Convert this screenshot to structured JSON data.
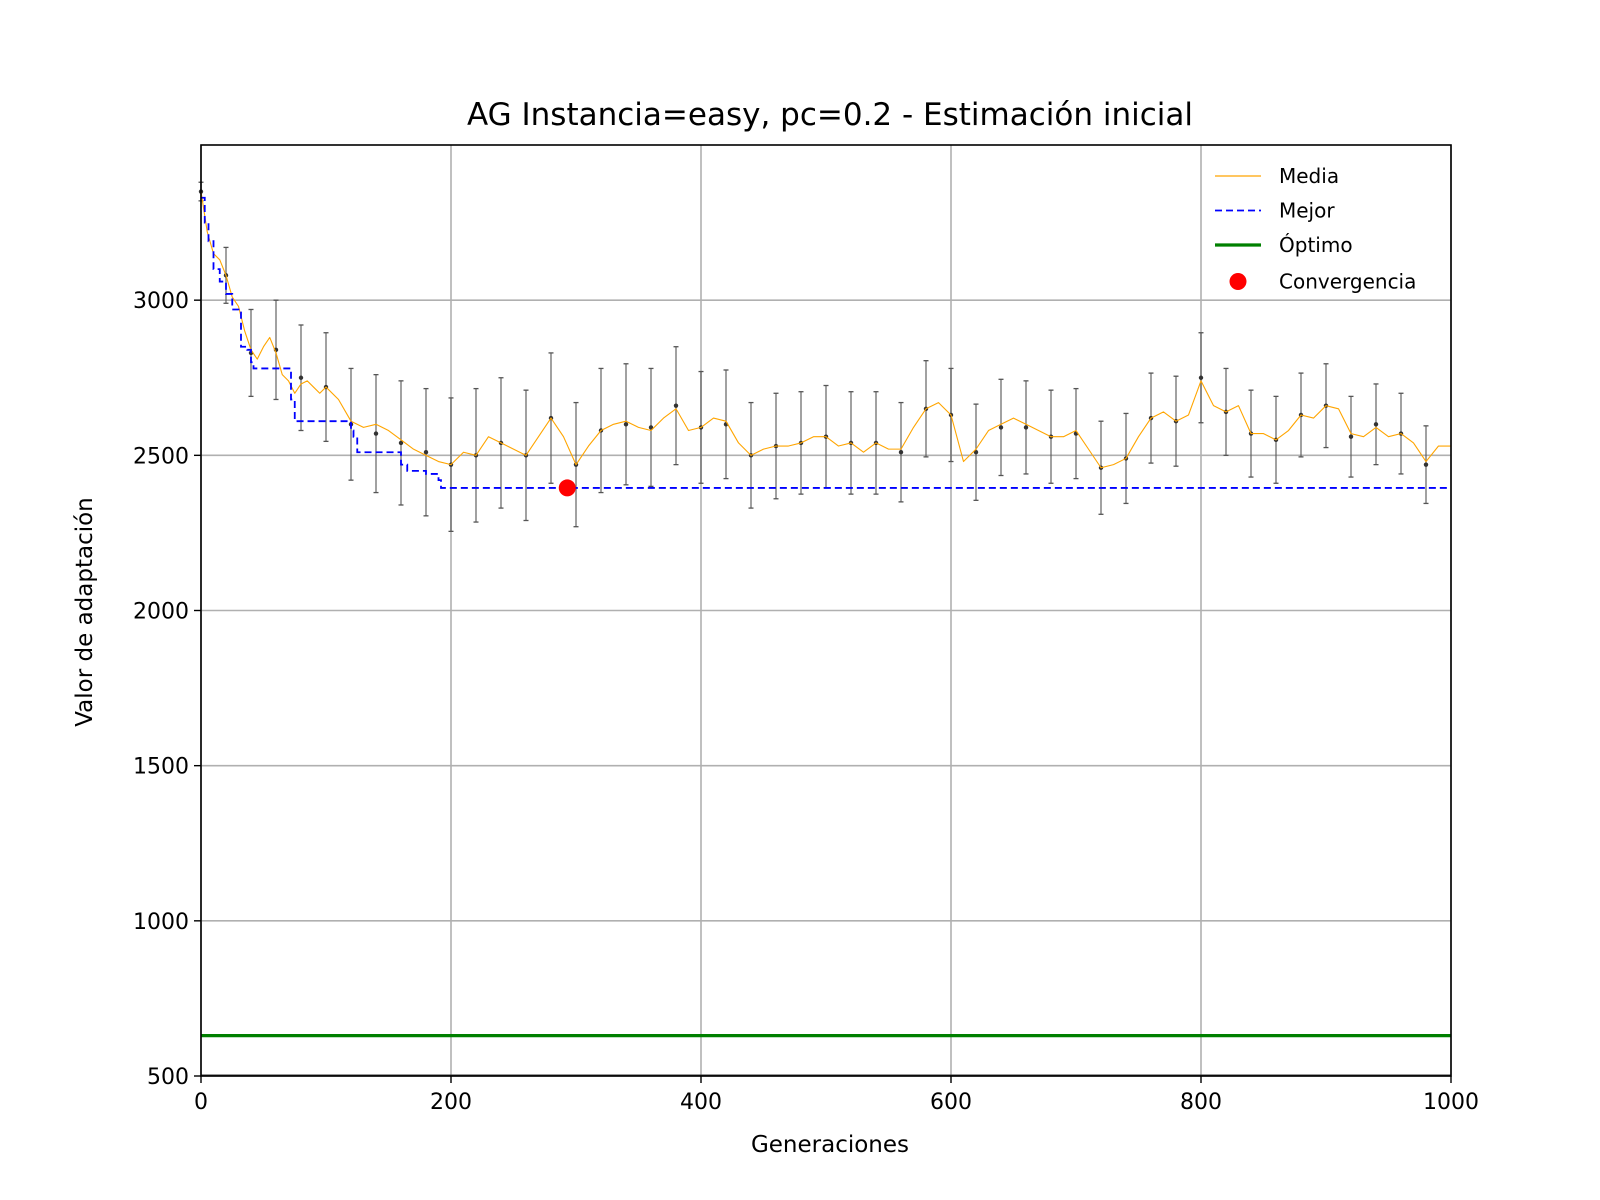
{
  "chart_data": {
    "type": "line",
    "title": "AG Instancia=easy, pc=0.2 - Estimación inicial",
    "xlabel": "Generaciones",
    "ylabel": "Valor de adaptación",
    "xlim": [
      0,
      1000
    ],
    "ylim": [
      500,
      3500
    ],
    "xticks": [
      0,
      200,
      400,
      600,
      800,
      1000
    ],
    "yticks": [
      500,
      1000,
      1500,
      2000,
      2500,
      3000
    ],
    "grid": true,
    "legend_position": "top-right",
    "series": [
      {
        "name": "Media",
        "color": "#ffa500",
        "style": "thin-solid",
        "x": [
          0,
          5,
          10,
          15,
          20,
          25,
          30,
          35,
          40,
          45,
          50,
          55,
          60,
          65,
          70,
          75,
          80,
          85,
          90,
          95,
          100,
          110,
          120,
          130,
          140,
          150,
          160,
          170,
          180,
          190,
          200,
          210,
          220,
          230,
          240,
          250,
          260,
          270,
          280,
          290,
          300,
          310,
          320,
          330,
          340,
          350,
          360,
          370,
          380,
          390,
          400,
          410,
          420,
          430,
          440,
          450,
          460,
          470,
          480,
          490,
          500,
          510,
          520,
          530,
          540,
          550,
          560,
          570,
          580,
          590,
          600,
          610,
          620,
          630,
          640,
          650,
          660,
          670,
          680,
          690,
          700,
          710,
          720,
          730,
          740,
          750,
          760,
          770,
          780,
          790,
          800,
          810,
          820,
          830,
          840,
          850,
          860,
          870,
          880,
          890,
          900,
          910,
          920,
          930,
          940,
          950,
          960,
          970,
          980,
          990,
          1000
        ],
        "values": [
          3350,
          3220,
          3150,
          3130,
          3080,
          3010,
          2980,
          2900,
          2840,
          2810,
          2850,
          2880,
          2830,
          2760,
          2740,
          2700,
          2730,
          2740,
          2720,
          2700,
          2720,
          2680,
          2610,
          2590,
          2600,
          2580,
          2550,
          2520,
          2500,
          2480,
          2470,
          2510,
          2500,
          2560,
          2540,
          2520,
          2500,
          2560,
          2620,
          2560,
          2470,
          2530,
          2580,
          2600,
          2610,
          2590,
          2580,
          2620,
          2650,
          2580,
          2590,
          2620,
          2610,
          2540,
          2500,
          2520,
          2530,
          2530,
          2540,
          2560,
          2560,
          2530,
          2540,
          2510,
          2540,
          2520,
          2520,
          2590,
          2650,
          2670,
          2630,
          2480,
          2520,
          2580,
          2600,
          2620,
          2600,
          2580,
          2560,
          2560,
          2580,
          2520,
          2460,
          2470,
          2490,
          2560,
          2620,
          2640,
          2610,
          2630,
          2740,
          2660,
          2640,
          2660,
          2570,
          2570,
          2550,
          2580,
          2630,
          2620,
          2660,
          2650,
          2570,
          2560,
          2590,
          2560,
          2570,
          2540,
          2480,
          2530,
          2530
        ]
      },
      {
        "name": "Mejor",
        "color": "#0000ff",
        "style": "dashed",
        "x": [
          0,
          3,
          6,
          10,
          15,
          20,
          25,
          30,
          32,
          37,
          40,
          42,
          70,
          72,
          75,
          115,
          120,
          122,
          125,
          155,
          160,
          165,
          180,
          190,
          192,
          1000
        ],
        "values": [
          3330,
          3250,
          3190,
          3100,
          3060,
          3020,
          2970,
          2960,
          2850,
          2840,
          2800,
          2780,
          2780,
          2680,
          2610,
          2610,
          2580,
          2560,
          2510,
          2510,
          2470,
          2450,
          2440,
          2420,
          2395,
          2395
        ]
      },
      {
        "name": "Óptimo",
        "color": "#008000",
        "style": "thick-solid",
        "x": [
          0,
          1000
        ],
        "values": [
          630,
          630
        ]
      }
    ],
    "error_bars": {
      "color": "#555555",
      "x": [
        0,
        20,
        40,
        60,
        80,
        100,
        120,
        140,
        160,
        180,
        200,
        220,
        240,
        260,
        280,
        300,
        320,
        340,
        360,
        380,
        400,
        420,
        440,
        460,
        480,
        500,
        520,
        540,
        560,
        580,
        600,
        620,
        640,
        660,
        680,
        700,
        720,
        740,
        760,
        780,
        800,
        820,
        840,
        860,
        880,
        900,
        920,
        940,
        960,
        980
      ],
      "y": [
        3350,
        3080,
        2830,
        2840,
        2750,
        2720,
        2600,
        2570,
        2540,
        2510,
        2470,
        2500,
        2540,
        2500,
        2620,
        2470,
        2580,
        2600,
        2590,
        2660,
        2590,
        2600,
        2500,
        2530,
        2540,
        2560,
        2540,
        2540,
        2510,
        2650,
        2630,
        2510,
        2590,
        2590,
        2560,
        2570,
        2460,
        2490,
        2620,
        2610,
        2750,
        2640,
        2570,
        2550,
        2630,
        2660,
        2560,
        2600,
        2570,
        2470
      ],
      "err": [
        30,
        90,
        140,
        160,
        170,
        175,
        180,
        190,
        200,
        205,
        215,
        215,
        210,
        210,
        210,
        200,
        200,
        195,
        190,
        190,
        180,
        175,
        170,
        170,
        165,
        165,
        165,
        165,
        160,
        155,
        150,
        155,
        155,
        150,
        150,
        145,
        150,
        145,
        145,
        145,
        145,
        140,
        140,
        140,
        135,
        135,
        130,
        130,
        130,
        125
      ]
    },
    "convergence": {
      "name": "Convergencia",
      "color": "#ff0000",
      "x": 293,
      "y": 2395
    }
  }
}
